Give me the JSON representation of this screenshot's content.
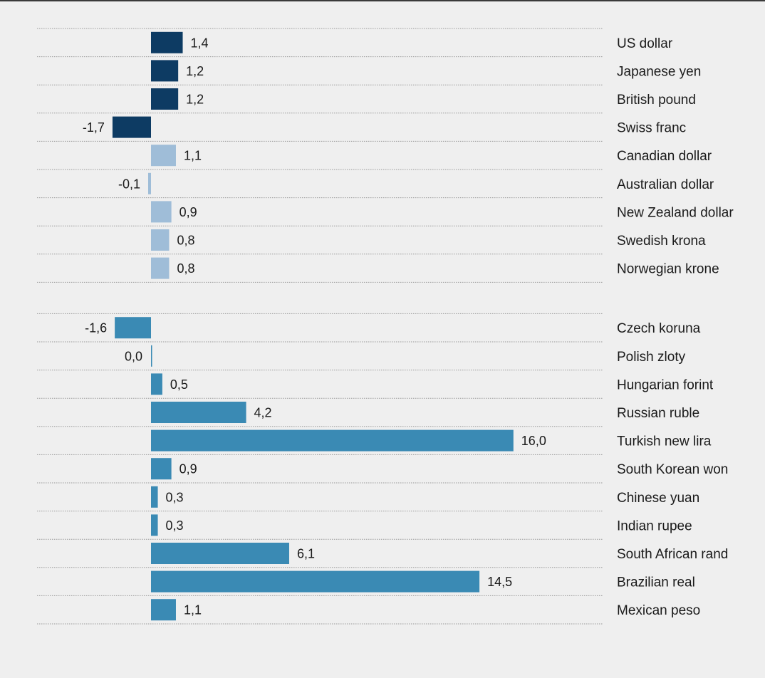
{
  "colors": {
    "major": "#0d3b63",
    "other_advanced": "#9fbdd8",
    "emerging": "#3a8ab4",
    "gridline": "#9a9a9a"
  },
  "chart_data": {
    "type": "bar",
    "orientation": "horizontal",
    "title": "",
    "xlabel": "",
    "ylabel": "",
    "grid": true,
    "legend": "none",
    "xlim": [
      -3,
      23
    ],
    "groups": [
      {
        "color_key": "major",
        "items": [
          {
            "category": "US dollar",
            "value": 1.4,
            "label": "1,4"
          },
          {
            "category": "Japanese yen",
            "value": 1.2,
            "label": "1,2"
          },
          {
            "category": "British pound",
            "value": 1.2,
            "label": "1,2"
          },
          {
            "category": "Swiss franc",
            "value": -1.7,
            "label": "-1,7"
          }
        ]
      },
      {
        "color_key": "other_advanced",
        "items": [
          {
            "category": "Canadian dollar",
            "value": 1.1,
            "label": "1,1"
          },
          {
            "category": "Australian dollar",
            "value": -0.1,
            "label": "-0,1"
          },
          {
            "category": "New Zealand dollar",
            "value": 0.9,
            "label": "0,9"
          },
          {
            "category": "Swedish krona",
            "value": 0.8,
            "label": "0,8"
          },
          {
            "category": "Norwegian krone",
            "value": 0.8,
            "label": "0,8"
          }
        ]
      },
      {
        "color_key": "emerging",
        "items": [
          {
            "category": "Czech koruna",
            "value": -1.6,
            "label": "-1,6"
          },
          {
            "category": "Polish zloty",
            "value": 0.0,
            "label": "0,0"
          },
          {
            "category": "Hungarian forint",
            "value": 0.5,
            "label": "0,5"
          },
          {
            "category": "Russian ruble",
            "value": 4.2,
            "label": "4,2"
          },
          {
            "category": "Turkish new lira",
            "value": 16.0,
            "label": "16,0"
          },
          {
            "category": "South Korean won",
            "value": 0.9,
            "label": "0,9"
          },
          {
            "category": "Chinese yuan",
            "value": 0.3,
            "label": "0,3"
          },
          {
            "category": "Indian rupee",
            "value": 0.3,
            "label": "0,3"
          },
          {
            "category": "South African rand",
            "value": 6.1,
            "label": "6,1"
          },
          {
            "category": "Brazilian real",
            "value": 14.5,
            "label": "14,5"
          },
          {
            "category": "Mexican peso",
            "value": 1.1,
            "label": "1,1"
          }
        ]
      }
    ]
  }
}
